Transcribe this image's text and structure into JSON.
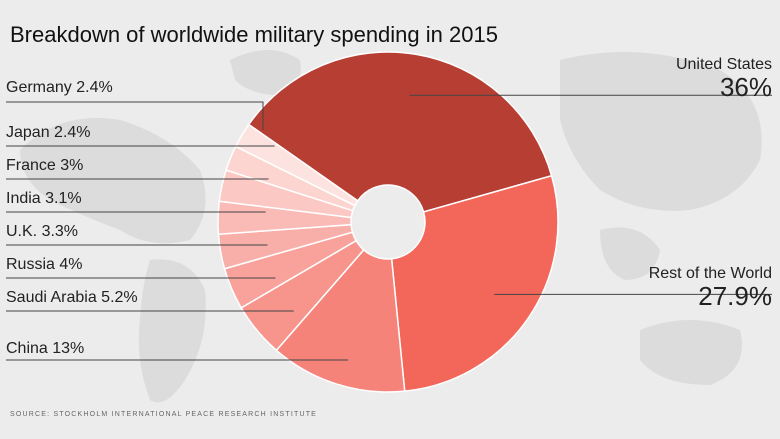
{
  "title": "Breakdown of worldwide military spending in 2015",
  "source": "SOURCE: STOCKHOLM INTERNATIONAL PEACE RESEARCH INSTITUTE",
  "chart_data": {
    "type": "pie",
    "title": "Breakdown of worldwide military spending in 2015",
    "slices": [
      {
        "label": "United States",
        "value": 36,
        "display": "36%",
        "color": "#b73e33"
      },
      {
        "label": "Rest of the World",
        "value": 27.9,
        "display": "27.9%",
        "color": "#f3665a"
      },
      {
        "label": "China",
        "value": 13,
        "display": "China 13%",
        "color": "#f5837a"
      },
      {
        "label": "Saudi Arabia",
        "value": 5.2,
        "display": "Saudi Arabia 5.2%",
        "color": "#f7958d"
      },
      {
        "label": "Russia",
        "value": 4,
        "display": "Russia 4%",
        "color": "#f8a29b"
      },
      {
        "label": "U.K.",
        "value": 3.3,
        "display": "U.K. 3.3%",
        "color": "#f9afa9"
      },
      {
        "label": "India",
        "value": 3.1,
        "display": "India 3.1%",
        "color": "#fabbb6"
      },
      {
        "label": "France",
        "value": 3,
        "display": "France 3%",
        "color": "#fbc8c3"
      },
      {
        "label": "Japan",
        "value": 2.4,
        "display": "Japan 2.4%",
        "color": "#fcd5d1"
      },
      {
        "label": "Germany",
        "value": 2.4,
        "display": "Germany 2.4%",
        "color": "#fde3e0"
      }
    ]
  }
}
